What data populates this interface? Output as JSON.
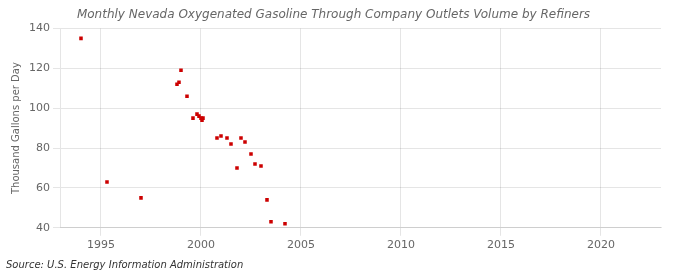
{
  "chart_data": {
    "type": "scatter",
    "title": "Monthly Nevada Oxygenated Gasoline Through Company Outlets Volume by Refiners",
    "ylabel": "Thousand Gallons per Day",
    "annotations": [
      "Source: U.S. Energy Information Administration"
    ],
    "x": [
      1994.0,
      1995.3,
      1997.0,
      1998.8,
      1998.9,
      1999.0,
      1999.3,
      1999.6,
      1999.8,
      1999.9,
      2000.0,
      2000.05,
      2000.1,
      2000.8,
      2001.0,
      2001.3,
      2001.5,
      2001.8,
      2002.0,
      2002.2,
      2002.5,
      2002.7,
      2003.0,
      2003.3,
      2003.5,
      2004.2
    ],
    "values": [
      135,
      63,
      55,
      112,
      113,
      119,
      106,
      95,
      97,
      96,
      95,
      94,
      95,
      85,
      86,
      85,
      82,
      70,
      85,
      83,
      77,
      72,
      71,
      54,
      43,
      42
    ],
    "color": "#cc0000",
    "marker": "square",
    "xlim": [
      1993,
      2023
    ],
    "xticks": [
      1995,
      2000,
      2005,
      2010,
      2015,
      2020
    ],
    "ylim": [
      40,
      140
    ],
    "yticks": [
      40,
      60,
      80,
      100,
      120,
      140
    ],
    "grid": true
  }
}
